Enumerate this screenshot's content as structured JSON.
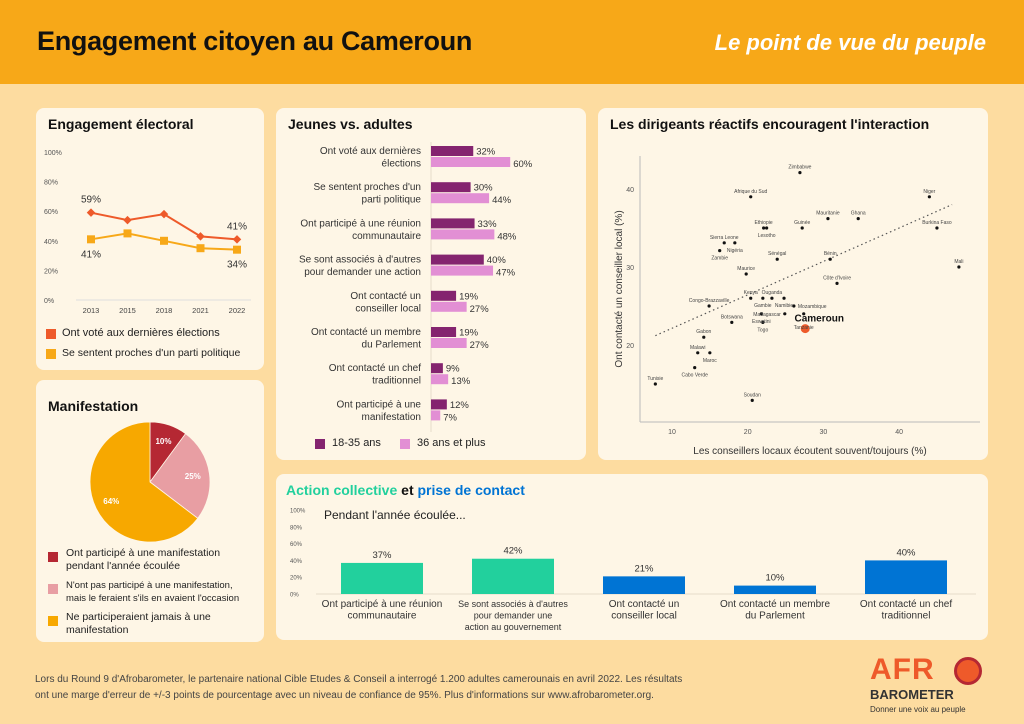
{
  "header": {
    "title": "Engagement citoyen au Cameroun",
    "subtitle": "Le point de vue du peuple"
  },
  "colors": {
    "header_bg": "#F7A818",
    "page_bg": "#FDDCA0",
    "card_bg": "#FEF6E6",
    "voted": "#EE5A2A",
    "party": "#F7A818",
    "young": "#84246F",
    "adult": "#E28FD4",
    "pie_participated": "#B52833",
    "pie_would": "#E89EA3",
    "pie_never": "#F7A800",
    "collective": "#22D09D",
    "contact": "#0074D4",
    "cameroun": "#EE5A2A"
  },
  "footer": {
    "line1": "Lors du Round 9 d'Afrobarometer, le partenaire national Cible Etudes & Conseil a interrogé 1.200 adultes camerounais en avril 2022. Les résultats",
    "line2": "ont une marge d'erreur de +/-3 points de pourcentage avec un niveau de confiance de 95%. Plus d'informations sur www.afrobarometer.org."
  },
  "logo": {
    "afro": "AFR",
    "barometer": "BAROMETER",
    "tagline": "Donner une voix au peuple"
  },
  "chart_data": [
    {
      "id": "electoral",
      "type": "line",
      "title": "Engagement électoral",
      "x": [
        "2013",
        "2015",
        "2018",
        "2021",
        "2022"
      ],
      "ylim": [
        0,
        100
      ],
      "yticks": [
        "0%",
        "20%",
        "40%",
        "60%",
        "80%",
        "100%"
      ],
      "series": [
        {
          "name": "Ont voté aux dernières élections",
          "values": [
            59,
            54,
            58,
            43,
            41
          ],
          "labels": [
            "59%",
            "",
            "",
            "",
            "41%"
          ]
        },
        {
          "name": "Se sentent proches d'un parti politique",
          "values": [
            41,
            45,
            40,
            35,
            34
          ],
          "labels": [
            "41%",
            "",
            "",
            "",
            "34%"
          ]
        }
      ],
      "legend": "bottom"
    },
    {
      "id": "youth",
      "type": "bar",
      "orientation": "horizontal",
      "title": "Jeunes vs. adultes",
      "categories": [
        [
          "Ont voté aux dernières",
          "élections"
        ],
        [
          "Se sentent proches d'un",
          "parti politique"
        ],
        [
          "Ont participé à une réunion",
          "communautaire"
        ],
        [
          "Se sont associés à d'autres",
          "pour demander une action"
        ],
        [
          "Ont contacté un",
          "conseiller local"
        ],
        [
          "Ont contacté un membre",
          "du Parlement"
        ],
        [
          "Ont contacté un chef",
          "traditionnel"
        ],
        [
          "Ont participé à une",
          "manifestation"
        ]
      ],
      "series": [
        {
          "name": "18-35 ans",
          "values": [
            32,
            30,
            33,
            40,
            19,
            19,
            9,
            12
          ]
        },
        {
          "name": "36 ans et plus",
          "values": [
            60,
            44,
            48,
            47,
            27,
            27,
            13,
            7
          ]
        }
      ],
      "legend": "bottom"
    },
    {
      "id": "scatter",
      "type": "scatter",
      "title": "Les dirigeants réactifs encouragent l'interaction",
      "xlabel": "Les conseillers locaux écoutent souvent/toujours (%)",
      "ylabel": "Ont contacté un conseiller local (%)",
      "xticks": [
        10,
        20,
        30,
        40
      ],
      "yticks": [
        20,
        30,
        40
      ],
      "xlim": [
        6,
        48
      ],
      "ylim": [
        12,
        44
      ],
      "trendline": {
        "style": "dotted",
        "from": [
          7.8,
          21.2
        ],
        "to": [
          47,
          38
        ]
      },
      "points": [
        {
          "name": "Zimbabwe",
          "x": 26.9,
          "y": 42.1
        },
        {
          "name": "Afrique du Sud",
          "x": 20.4,
          "y": 39.0
        },
        {
          "name": "Niger",
          "x": 44.0,
          "y": 39.0
        },
        {
          "name": "Mauritanie",
          "x": 30.6,
          "y": 36.2
        },
        {
          "name": "Ghana",
          "x": 34.6,
          "y": 36.2
        },
        {
          "name": "Ethiopie",
          "x": 22.1,
          "y": 35.0
        },
        {
          "name": "Lesotho",
          "x": 22.5,
          "y": 35.0
        },
        {
          "name": "Guinée",
          "x": 27.2,
          "y": 35.0
        },
        {
          "name": "Burkina Faso",
          "x": 45.0,
          "y": 35.0
        },
        {
          "name": "Sierra Leone",
          "x": 16.9,
          "y": 33.1
        },
        {
          "name": "Nigéria",
          "x": 18.3,
          "y": 33.1
        },
        {
          "name": "Zambie",
          "x": 16.3,
          "y": 32.1
        },
        {
          "name": "Sénégal",
          "x": 23.9,
          "y": 31.0
        },
        {
          "name": "Bénin",
          "x": 30.9,
          "y": 31.0
        },
        {
          "name": "Mali",
          "x": 47.9,
          "y": 30.0
        },
        {
          "name": "Maurice",
          "x": 19.8,
          "y": 29.1
        },
        {
          "name": "Côte d'Ivoire",
          "x": 31.8,
          "y": 27.9
        },
        {
          "name": "Kenya",
          "x": 20.4,
          "y": 26.0
        },
        {
          "name": "Gambie",
          "x": 22.0,
          "y": 26.0
        },
        {
          "name": "Ouganda",
          "x": 23.2,
          "y": 26.0
        },
        {
          "name": "Namibie",
          "x": 24.8,
          "y": 26.0
        },
        {
          "name": "Congo-Brazzaville",
          "x": 14.9,
          "y": 25.0
        },
        {
          "name": "Mozambique",
          "x": 26.1,
          "y": 25.0
        },
        {
          "name": "Eswatini",
          "x": 21.8,
          "y": 24.0
        },
        {
          "name": "Madagascar",
          "x": 24.9,
          "y": 24.0
        },
        {
          "name": "Tanzanie",
          "x": 27.4,
          "y": 24.0
        },
        {
          "name": "Botswana",
          "x": 17.9,
          "y": 22.9
        },
        {
          "name": "Togo",
          "x": 22.0,
          "y": 22.9
        },
        {
          "name": "Cameroun",
          "x": 27.6,
          "y": 22.1,
          "highlight": true
        },
        {
          "name": "Gabon",
          "x": 14.2,
          "y": 21.0
        },
        {
          "name": "Malawi",
          "x": 13.4,
          "y": 19.0
        },
        {
          "name": "Maroc",
          "x": 15.0,
          "y": 19.0
        },
        {
          "name": "Cabo Verde",
          "x": 13.0,
          "y": 17.1
        },
        {
          "name": "Tunisie",
          "x": 7.8,
          "y": 15.0
        },
        {
          "name": "Soudan",
          "x": 20.6,
          "y": 12.9
        }
      ]
    },
    {
      "id": "protest",
      "type": "pie",
      "title": "Manifestation",
      "slices": [
        {
          "label": "Ont participé à une manifestation pendant l'année écoulée",
          "value": 10,
          "display": "10%"
        },
        {
          "label": "N'ont pas participé à une manifestation, mais le feraient s'ils en avaient l'occasion",
          "value": 25,
          "display": "25%"
        },
        {
          "label": "Ne participeraient jamais à une manifestation",
          "value": 64,
          "display": "64%"
        }
      ],
      "legend_lines": [
        [
          "Ont participé à une manifestation",
          "pendant l'année écoulée"
        ],
        [
          "N'ont pas participé à une manifestation,",
          "mais le feraient s'ils en avaient l'occasion"
        ],
        [
          "Ne participeraient jamais à une",
          "manifestation"
        ]
      ]
    },
    {
      "id": "action",
      "type": "bar",
      "title_part1": "Action collective",
      "title_part2": "et",
      "title_part3": "prise de contact",
      "subtitle": "Pendant l'année écoulée...",
      "ylim": [
        0,
        100
      ],
      "yticks": [
        "0%",
        "20%",
        "40%",
        "60%",
        "80%",
        "100%"
      ],
      "categories": [
        [
          "Ont participé à une réunion",
          "communautaire"
        ],
        [
          "Se sont associés à d'autres",
          "pour demander une",
          "action au gouvernement"
        ],
        [
          "Ont contacté un",
          "conseiller local"
        ],
        [
          "Ont contacté un membre",
          "du Parlement"
        ],
        [
          "Ont contacté un chef",
          "traditionnel"
        ]
      ],
      "values": [
        37,
        42,
        21,
        10,
        40
      ],
      "display": [
        "37%",
        "42%",
        "21%",
        "10%",
        "40%"
      ],
      "groups": [
        "collective",
        "collective",
        "contact",
        "contact",
        "contact"
      ]
    }
  ]
}
